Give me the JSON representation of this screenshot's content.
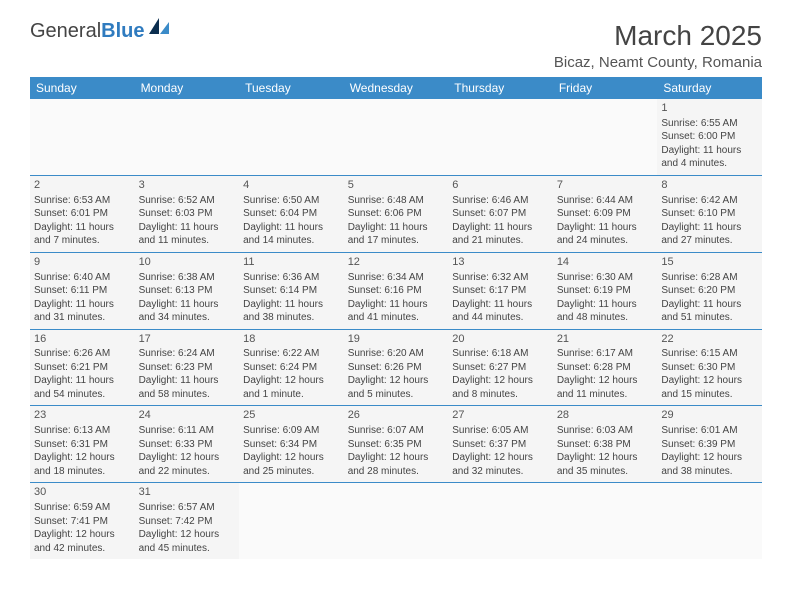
{
  "logo": {
    "text1": "General",
    "text2": "Blue"
  },
  "title": "March 2025",
  "location": "Bicaz, Neamt County, Romania",
  "colors": {
    "header_bg": "#3b8bc8",
    "header_fg": "#ffffff",
    "cell_border": "#3b8bc8",
    "cell_bg": "#f5f5f5",
    "logo_blue": "#2f7bbf",
    "logo_dark": "#444444"
  },
  "weekdays": [
    "Sunday",
    "Monday",
    "Tuesday",
    "Wednesday",
    "Thursday",
    "Friday",
    "Saturday"
  ],
  "weeks": [
    [
      null,
      null,
      null,
      null,
      null,
      null,
      {
        "n": "1",
        "sunrise": "Sunrise: 6:55 AM",
        "sunset": "Sunset: 6:00 PM",
        "daylight": "Daylight: 11 hours and 4 minutes."
      }
    ],
    [
      {
        "n": "2",
        "sunrise": "Sunrise: 6:53 AM",
        "sunset": "Sunset: 6:01 PM",
        "daylight": "Daylight: 11 hours and 7 minutes."
      },
      {
        "n": "3",
        "sunrise": "Sunrise: 6:52 AM",
        "sunset": "Sunset: 6:03 PM",
        "daylight": "Daylight: 11 hours and 11 minutes."
      },
      {
        "n": "4",
        "sunrise": "Sunrise: 6:50 AM",
        "sunset": "Sunset: 6:04 PM",
        "daylight": "Daylight: 11 hours and 14 minutes."
      },
      {
        "n": "5",
        "sunrise": "Sunrise: 6:48 AM",
        "sunset": "Sunset: 6:06 PM",
        "daylight": "Daylight: 11 hours and 17 minutes."
      },
      {
        "n": "6",
        "sunrise": "Sunrise: 6:46 AM",
        "sunset": "Sunset: 6:07 PM",
        "daylight": "Daylight: 11 hours and 21 minutes."
      },
      {
        "n": "7",
        "sunrise": "Sunrise: 6:44 AM",
        "sunset": "Sunset: 6:09 PM",
        "daylight": "Daylight: 11 hours and 24 minutes."
      },
      {
        "n": "8",
        "sunrise": "Sunrise: 6:42 AM",
        "sunset": "Sunset: 6:10 PM",
        "daylight": "Daylight: 11 hours and 27 minutes."
      }
    ],
    [
      {
        "n": "9",
        "sunrise": "Sunrise: 6:40 AM",
        "sunset": "Sunset: 6:11 PM",
        "daylight": "Daylight: 11 hours and 31 minutes."
      },
      {
        "n": "10",
        "sunrise": "Sunrise: 6:38 AM",
        "sunset": "Sunset: 6:13 PM",
        "daylight": "Daylight: 11 hours and 34 minutes."
      },
      {
        "n": "11",
        "sunrise": "Sunrise: 6:36 AM",
        "sunset": "Sunset: 6:14 PM",
        "daylight": "Daylight: 11 hours and 38 minutes."
      },
      {
        "n": "12",
        "sunrise": "Sunrise: 6:34 AM",
        "sunset": "Sunset: 6:16 PM",
        "daylight": "Daylight: 11 hours and 41 minutes."
      },
      {
        "n": "13",
        "sunrise": "Sunrise: 6:32 AM",
        "sunset": "Sunset: 6:17 PM",
        "daylight": "Daylight: 11 hours and 44 minutes."
      },
      {
        "n": "14",
        "sunrise": "Sunrise: 6:30 AM",
        "sunset": "Sunset: 6:19 PM",
        "daylight": "Daylight: 11 hours and 48 minutes."
      },
      {
        "n": "15",
        "sunrise": "Sunrise: 6:28 AM",
        "sunset": "Sunset: 6:20 PM",
        "daylight": "Daylight: 11 hours and 51 minutes."
      }
    ],
    [
      {
        "n": "16",
        "sunrise": "Sunrise: 6:26 AM",
        "sunset": "Sunset: 6:21 PM",
        "daylight": "Daylight: 11 hours and 54 minutes."
      },
      {
        "n": "17",
        "sunrise": "Sunrise: 6:24 AM",
        "sunset": "Sunset: 6:23 PM",
        "daylight": "Daylight: 11 hours and 58 minutes."
      },
      {
        "n": "18",
        "sunrise": "Sunrise: 6:22 AM",
        "sunset": "Sunset: 6:24 PM",
        "daylight": "Daylight: 12 hours and 1 minute."
      },
      {
        "n": "19",
        "sunrise": "Sunrise: 6:20 AM",
        "sunset": "Sunset: 6:26 PM",
        "daylight": "Daylight: 12 hours and 5 minutes."
      },
      {
        "n": "20",
        "sunrise": "Sunrise: 6:18 AM",
        "sunset": "Sunset: 6:27 PM",
        "daylight": "Daylight: 12 hours and 8 minutes."
      },
      {
        "n": "21",
        "sunrise": "Sunrise: 6:17 AM",
        "sunset": "Sunset: 6:28 PM",
        "daylight": "Daylight: 12 hours and 11 minutes."
      },
      {
        "n": "22",
        "sunrise": "Sunrise: 6:15 AM",
        "sunset": "Sunset: 6:30 PM",
        "daylight": "Daylight: 12 hours and 15 minutes."
      }
    ],
    [
      {
        "n": "23",
        "sunrise": "Sunrise: 6:13 AM",
        "sunset": "Sunset: 6:31 PM",
        "daylight": "Daylight: 12 hours and 18 minutes."
      },
      {
        "n": "24",
        "sunrise": "Sunrise: 6:11 AM",
        "sunset": "Sunset: 6:33 PM",
        "daylight": "Daylight: 12 hours and 22 minutes."
      },
      {
        "n": "25",
        "sunrise": "Sunrise: 6:09 AM",
        "sunset": "Sunset: 6:34 PM",
        "daylight": "Daylight: 12 hours and 25 minutes."
      },
      {
        "n": "26",
        "sunrise": "Sunrise: 6:07 AM",
        "sunset": "Sunset: 6:35 PM",
        "daylight": "Daylight: 12 hours and 28 minutes."
      },
      {
        "n": "27",
        "sunrise": "Sunrise: 6:05 AM",
        "sunset": "Sunset: 6:37 PM",
        "daylight": "Daylight: 12 hours and 32 minutes."
      },
      {
        "n": "28",
        "sunrise": "Sunrise: 6:03 AM",
        "sunset": "Sunset: 6:38 PM",
        "daylight": "Daylight: 12 hours and 35 minutes."
      },
      {
        "n": "29",
        "sunrise": "Sunrise: 6:01 AM",
        "sunset": "Sunset: 6:39 PM",
        "daylight": "Daylight: 12 hours and 38 minutes."
      }
    ],
    [
      {
        "n": "30",
        "sunrise": "Sunrise: 6:59 AM",
        "sunset": "Sunset: 7:41 PM",
        "daylight": "Daylight: 12 hours and 42 minutes."
      },
      {
        "n": "31",
        "sunrise": "Sunrise: 6:57 AM",
        "sunset": "Sunset: 7:42 PM",
        "daylight": "Daylight: 12 hours and 45 minutes."
      },
      null,
      null,
      null,
      null,
      null
    ]
  ]
}
